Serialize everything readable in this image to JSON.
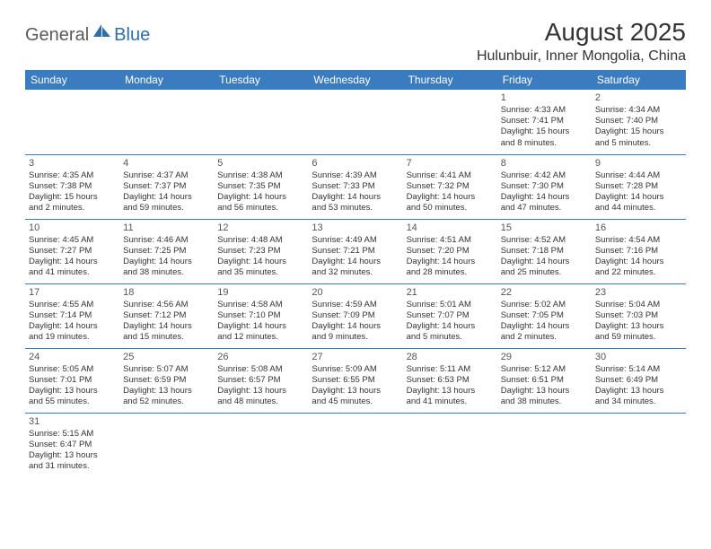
{
  "logo": {
    "part1": "General",
    "part2": "Blue"
  },
  "title": "August 2025",
  "location": "Hulunbuir, Inner Mongolia, China",
  "colors": {
    "header_bg": "#3b7bbf",
    "header_text": "#ffffff",
    "line": "#3b7bbf",
    "logo_gray": "#5a5a5a",
    "logo_blue": "#2f6fa8"
  },
  "weekdays": [
    "Sunday",
    "Monday",
    "Tuesday",
    "Wednesday",
    "Thursday",
    "Friday",
    "Saturday"
  ],
  "weeks": [
    [
      null,
      null,
      null,
      null,
      null,
      {
        "n": "1",
        "sr": "Sunrise: 4:33 AM",
        "ss": "Sunset: 7:41 PM",
        "d1": "Daylight: 15 hours",
        "d2": "and 8 minutes."
      },
      {
        "n": "2",
        "sr": "Sunrise: 4:34 AM",
        "ss": "Sunset: 7:40 PM",
        "d1": "Daylight: 15 hours",
        "d2": "and 5 minutes."
      }
    ],
    [
      {
        "n": "3",
        "sr": "Sunrise: 4:35 AM",
        "ss": "Sunset: 7:38 PM",
        "d1": "Daylight: 15 hours",
        "d2": "and 2 minutes."
      },
      {
        "n": "4",
        "sr": "Sunrise: 4:37 AM",
        "ss": "Sunset: 7:37 PM",
        "d1": "Daylight: 14 hours",
        "d2": "and 59 minutes."
      },
      {
        "n": "5",
        "sr": "Sunrise: 4:38 AM",
        "ss": "Sunset: 7:35 PM",
        "d1": "Daylight: 14 hours",
        "d2": "and 56 minutes."
      },
      {
        "n": "6",
        "sr": "Sunrise: 4:39 AM",
        "ss": "Sunset: 7:33 PM",
        "d1": "Daylight: 14 hours",
        "d2": "and 53 minutes."
      },
      {
        "n": "7",
        "sr": "Sunrise: 4:41 AM",
        "ss": "Sunset: 7:32 PM",
        "d1": "Daylight: 14 hours",
        "d2": "and 50 minutes."
      },
      {
        "n": "8",
        "sr": "Sunrise: 4:42 AM",
        "ss": "Sunset: 7:30 PM",
        "d1": "Daylight: 14 hours",
        "d2": "and 47 minutes."
      },
      {
        "n": "9",
        "sr": "Sunrise: 4:44 AM",
        "ss": "Sunset: 7:28 PM",
        "d1": "Daylight: 14 hours",
        "d2": "and 44 minutes."
      }
    ],
    [
      {
        "n": "10",
        "sr": "Sunrise: 4:45 AM",
        "ss": "Sunset: 7:27 PM",
        "d1": "Daylight: 14 hours",
        "d2": "and 41 minutes."
      },
      {
        "n": "11",
        "sr": "Sunrise: 4:46 AM",
        "ss": "Sunset: 7:25 PM",
        "d1": "Daylight: 14 hours",
        "d2": "and 38 minutes."
      },
      {
        "n": "12",
        "sr": "Sunrise: 4:48 AM",
        "ss": "Sunset: 7:23 PM",
        "d1": "Daylight: 14 hours",
        "d2": "and 35 minutes."
      },
      {
        "n": "13",
        "sr": "Sunrise: 4:49 AM",
        "ss": "Sunset: 7:21 PM",
        "d1": "Daylight: 14 hours",
        "d2": "and 32 minutes."
      },
      {
        "n": "14",
        "sr": "Sunrise: 4:51 AM",
        "ss": "Sunset: 7:20 PM",
        "d1": "Daylight: 14 hours",
        "d2": "and 28 minutes."
      },
      {
        "n": "15",
        "sr": "Sunrise: 4:52 AM",
        "ss": "Sunset: 7:18 PM",
        "d1": "Daylight: 14 hours",
        "d2": "and 25 minutes."
      },
      {
        "n": "16",
        "sr": "Sunrise: 4:54 AM",
        "ss": "Sunset: 7:16 PM",
        "d1": "Daylight: 14 hours",
        "d2": "and 22 minutes."
      }
    ],
    [
      {
        "n": "17",
        "sr": "Sunrise: 4:55 AM",
        "ss": "Sunset: 7:14 PM",
        "d1": "Daylight: 14 hours",
        "d2": "and 19 minutes."
      },
      {
        "n": "18",
        "sr": "Sunrise: 4:56 AM",
        "ss": "Sunset: 7:12 PM",
        "d1": "Daylight: 14 hours",
        "d2": "and 15 minutes."
      },
      {
        "n": "19",
        "sr": "Sunrise: 4:58 AM",
        "ss": "Sunset: 7:10 PM",
        "d1": "Daylight: 14 hours",
        "d2": "and 12 minutes."
      },
      {
        "n": "20",
        "sr": "Sunrise: 4:59 AM",
        "ss": "Sunset: 7:09 PM",
        "d1": "Daylight: 14 hours",
        "d2": "and 9 minutes."
      },
      {
        "n": "21",
        "sr": "Sunrise: 5:01 AM",
        "ss": "Sunset: 7:07 PM",
        "d1": "Daylight: 14 hours",
        "d2": "and 5 minutes."
      },
      {
        "n": "22",
        "sr": "Sunrise: 5:02 AM",
        "ss": "Sunset: 7:05 PM",
        "d1": "Daylight: 14 hours",
        "d2": "and 2 minutes."
      },
      {
        "n": "23",
        "sr": "Sunrise: 5:04 AM",
        "ss": "Sunset: 7:03 PM",
        "d1": "Daylight: 13 hours",
        "d2": "and 59 minutes."
      }
    ],
    [
      {
        "n": "24",
        "sr": "Sunrise: 5:05 AM",
        "ss": "Sunset: 7:01 PM",
        "d1": "Daylight: 13 hours",
        "d2": "and 55 minutes."
      },
      {
        "n": "25",
        "sr": "Sunrise: 5:07 AM",
        "ss": "Sunset: 6:59 PM",
        "d1": "Daylight: 13 hours",
        "d2": "and 52 minutes."
      },
      {
        "n": "26",
        "sr": "Sunrise: 5:08 AM",
        "ss": "Sunset: 6:57 PM",
        "d1": "Daylight: 13 hours",
        "d2": "and 48 minutes."
      },
      {
        "n": "27",
        "sr": "Sunrise: 5:09 AM",
        "ss": "Sunset: 6:55 PM",
        "d1": "Daylight: 13 hours",
        "d2": "and 45 minutes."
      },
      {
        "n": "28",
        "sr": "Sunrise: 5:11 AM",
        "ss": "Sunset: 6:53 PM",
        "d1": "Daylight: 13 hours",
        "d2": "and 41 minutes."
      },
      {
        "n": "29",
        "sr": "Sunrise: 5:12 AM",
        "ss": "Sunset: 6:51 PM",
        "d1": "Daylight: 13 hours",
        "d2": "and 38 minutes."
      },
      {
        "n": "30",
        "sr": "Sunrise: 5:14 AM",
        "ss": "Sunset: 6:49 PM",
        "d1": "Daylight: 13 hours",
        "d2": "and 34 minutes."
      }
    ],
    [
      {
        "n": "31",
        "sr": "Sunrise: 5:15 AM",
        "ss": "Sunset: 6:47 PM",
        "d1": "Daylight: 13 hours",
        "d2": "and 31 minutes."
      },
      null,
      null,
      null,
      null,
      null,
      null
    ]
  ]
}
